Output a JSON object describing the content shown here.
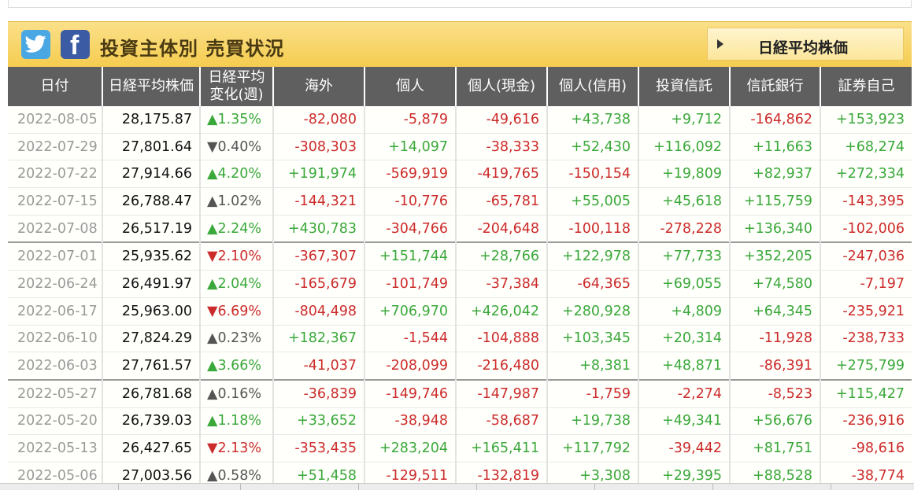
{
  "header": {
    "title": "投資主体別 売買状況",
    "nikkei_button": "日経平均株価",
    "twitter_icon": "twitter-icon",
    "facebook_icon": "facebook-icon",
    "facebook_glyph": "f"
  },
  "colors": {
    "positive": "#3aa83a",
    "negative": "#cc2b2b",
    "neutral": "#555555",
    "header_bg": "#5f5f5f",
    "banner": "#f5cc4e"
  },
  "table": {
    "columns": [
      "日付",
      "日経平均株価",
      "日経平均\n変化(週)",
      "海外",
      "個人",
      "個人(現金)",
      "個人(信用)",
      "投資信託",
      "信託銀行",
      "証券自己"
    ],
    "rows": [
      {
        "date": "2022-08-05",
        "index": "28,175.87",
        "change": "▲1.35%",
        "change_dir": "pos",
        "v": [
          "-82,080",
          "-5,879",
          "-49,616",
          "+43,738",
          "+9,712",
          "-164,862",
          "+153,923"
        ]
      },
      {
        "date": "2022-07-29",
        "index": "27,801.64",
        "change": "▼0.40%",
        "change_dir": "neu",
        "v": [
          "-308,303",
          "+14,097",
          "-38,333",
          "+52,430",
          "+116,092",
          "+11,663",
          "+68,274"
        ]
      },
      {
        "date": "2022-07-22",
        "index": "27,914.66",
        "change": "▲4.20%",
        "change_dir": "pos",
        "v": [
          "+191,974",
          "-569,919",
          "-419,765",
          "-150,154",
          "+19,809",
          "+82,937",
          "+272,334"
        ]
      },
      {
        "date": "2022-07-15",
        "index": "26,788.47",
        "change": "▲1.02%",
        "change_dir": "neu",
        "v": [
          "-144,321",
          "-10,776",
          "-65,781",
          "+55,005",
          "+45,618",
          "+115,759",
          "-143,395"
        ]
      },
      {
        "date": "2022-07-08",
        "index": "26,517.19",
        "change": "▲2.24%",
        "change_dir": "pos",
        "v": [
          "+430,783",
          "-304,766",
          "-204,648",
          "-100,118",
          "-278,228",
          "+136,340",
          "-102,006"
        ]
      },
      {
        "date": "2022-07-01",
        "index": "25,935.62",
        "change": "▼2.10%",
        "change_dir": "neg",
        "sep": true,
        "v": [
          "-367,307",
          "+151,744",
          "+28,766",
          "+122,978",
          "+77,733",
          "+352,205",
          "-247,036"
        ]
      },
      {
        "date": "2022-06-24",
        "index": "26,491.97",
        "change": "▲2.04%",
        "change_dir": "pos",
        "v": [
          "-165,679",
          "-101,749",
          "-37,384",
          "-64,365",
          "+69,055",
          "+74,580",
          "-7,197"
        ]
      },
      {
        "date": "2022-06-17",
        "index": "25,963.00",
        "change": "▼6.69%",
        "change_dir": "neg",
        "v": [
          "-804,498",
          "+706,970",
          "+426,042",
          "+280,928",
          "+4,809",
          "+64,345",
          "-235,921"
        ]
      },
      {
        "date": "2022-06-10",
        "index": "27,824.29",
        "change": "▲0.23%",
        "change_dir": "neu",
        "v": [
          "+182,367",
          "-1,544",
          "-104,888",
          "+103,345",
          "+20,314",
          "-11,928",
          "-238,733"
        ]
      },
      {
        "date": "2022-06-03",
        "index": "27,761.57",
        "change": "▲3.66%",
        "change_dir": "pos",
        "v": [
          "-41,037",
          "-208,099",
          "-216,480",
          "+8,381",
          "+48,871",
          "-86,391",
          "+275,799"
        ]
      },
      {
        "date": "2022-05-27",
        "index": "26,781.68",
        "change": "▲0.16%",
        "change_dir": "neu",
        "sep": true,
        "v": [
          "-36,839",
          "-149,746",
          "-147,987",
          "-1,759",
          "-2,274",
          "-8,523",
          "+115,427"
        ]
      },
      {
        "date": "2022-05-20",
        "index": "26,739.03",
        "change": "▲1.18%",
        "change_dir": "pos",
        "v": [
          "+33,652",
          "-38,948",
          "-58,687",
          "+19,738",
          "+49,341",
          "+56,676",
          "-236,916"
        ]
      },
      {
        "date": "2022-05-13",
        "index": "26,427.65",
        "change": "▼2.13%",
        "change_dir": "neg",
        "v": [
          "-353,435",
          "+283,204",
          "+165,411",
          "+117,792",
          "-39,442",
          "+81,751",
          "-98,616"
        ]
      },
      {
        "date": "2022-05-06",
        "index": "27,003.56",
        "change": "▲0.58%",
        "change_dir": "neu",
        "v": [
          "+51,458",
          "-129,511",
          "-132,819",
          "+3,308",
          "+29,395",
          "+88,528",
          "-38,774"
        ]
      }
    ]
  }
}
